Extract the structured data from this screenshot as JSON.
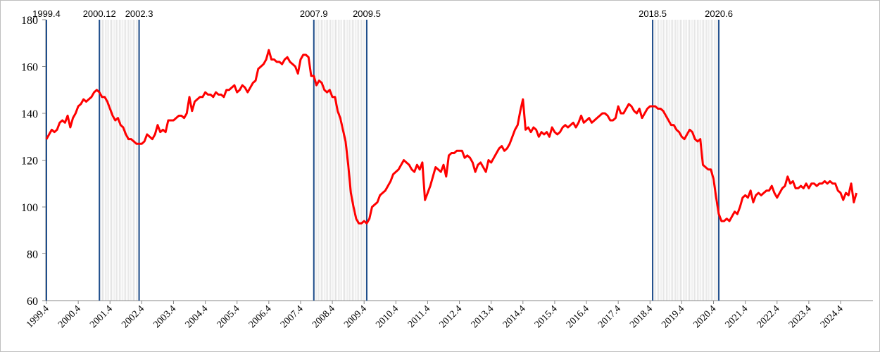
{
  "chart_data": {
    "type": "line",
    "categories": [
      "1999.4",
      null,
      null,
      null,
      null,
      null,
      null,
      null,
      null,
      null,
      null,
      null,
      "2000.4",
      null,
      null,
      null,
      null,
      null,
      null,
      null,
      null,
      null,
      null,
      null,
      "2001.4",
      null,
      null,
      null,
      null,
      null,
      null,
      null,
      null,
      null,
      null,
      null,
      "2002.4",
      null,
      null,
      null,
      null,
      null,
      null,
      null,
      null,
      null,
      null,
      null,
      "2003.4",
      null,
      null,
      null,
      null,
      null,
      null,
      null,
      null,
      null,
      null,
      null,
      "2004.4",
      null,
      null,
      null,
      null,
      null,
      null,
      null,
      null,
      null,
      null,
      null,
      "2005.4",
      null,
      null,
      null,
      null,
      null,
      null,
      null,
      null,
      null,
      null,
      null,
      "2006.4",
      null,
      null,
      null,
      null,
      null,
      null,
      null,
      null,
      null,
      null,
      null,
      "2007.4",
      null,
      null,
      null,
      null,
      null,
      null,
      null,
      null,
      null,
      null,
      null,
      "2008.4",
      null,
      null,
      null,
      null,
      null,
      null,
      null,
      null,
      null,
      null,
      null,
      "2009.4",
      null,
      null,
      null,
      null,
      null,
      null,
      null,
      null,
      null,
      null,
      null,
      "2010.4",
      null,
      null,
      null,
      null,
      null,
      null,
      null,
      null,
      null,
      null,
      null,
      "2011.4",
      null,
      null,
      null,
      null,
      null,
      null,
      null,
      null,
      null,
      null,
      null,
      "2012.4",
      null,
      null,
      null,
      null,
      null,
      null,
      null,
      null,
      null,
      null,
      null,
      "2013.4",
      null,
      null,
      null,
      null,
      null,
      null,
      null,
      null,
      null,
      null,
      null,
      "2014.4",
      null,
      null,
      null,
      null,
      null,
      null,
      null,
      null,
      null,
      null,
      null,
      "2015.4",
      null,
      null,
      null,
      null,
      null,
      null,
      null,
      null,
      null,
      null,
      null,
      "2016.4",
      null,
      null,
      null,
      null,
      null,
      null,
      null,
      null,
      null,
      null,
      null,
      "2017.4",
      null,
      null,
      null,
      null,
      null,
      null,
      null,
      null,
      null,
      null,
      null,
      "2018.4",
      null,
      null,
      null,
      null,
      null,
      null,
      null,
      null,
      null,
      null,
      null,
      "2019.4",
      null,
      null,
      null,
      null,
      null,
      null,
      null,
      null,
      null,
      null,
      null,
      "2020.4",
      null,
      null,
      null,
      null,
      null,
      null,
      null,
      null,
      null,
      null,
      null,
      "2021.4",
      null,
      null,
      null,
      null,
      null,
      null,
      null,
      null,
      null,
      null,
      null,
      "2022.4",
      null,
      null,
      null,
      null,
      null,
      null,
      null,
      null,
      null,
      null,
      null,
      "2023.4",
      null,
      null,
      null,
      null,
      null,
      null,
      null,
      null,
      null,
      null,
      null,
      "2024.4",
      null,
      null,
      null,
      null,
      null,
      null
    ],
    "values": [
      129,
      131,
      133,
      132,
      133,
      136,
      137,
      136,
      139,
      134,
      138,
      140,
      143,
      144,
      146,
      145,
      146,
      147,
      149,
      150,
      149,
      147,
      147,
      145,
      142,
      139,
      137,
      138,
      135,
      134,
      131,
      129,
      129,
      128,
      127,
      127,
      127,
      128,
      131,
      130,
      129,
      131,
      135,
      132,
      133,
      132,
      137,
      137,
      137,
      138,
      139,
      139,
      138,
      140,
      147,
      141,
      145,
      146,
      147,
      147,
      149,
      148,
      148,
      147,
      149,
      148,
      148,
      147,
      150,
      150,
      151,
      152,
      149,
      150,
      152,
      151,
      149,
      151,
      153,
      154,
      159,
      160,
      161,
      163,
      167,
      163,
      163,
      162,
      162,
      161,
      163,
      164,
      162,
      161,
      160,
      157,
      163,
      165,
      165,
      164,
      156,
      156,
      152,
      154,
      153,
      150,
      149,
      150,
      147,
      147,
      141,
      138,
      133,
      128,
      118,
      106,
      100,
      95,
      93,
      93,
      94,
      93,
      95,
      100,
      101,
      102,
      105,
      106,
      107,
      109,
      111,
      114,
      115,
      116,
      118,
      120,
      119,
      118,
      116,
      115,
      118,
      116,
      119,
      103,
      106,
      109,
      113,
      117,
      116,
      115,
      118,
      113,
      122,
      123,
      123,
      124,
      124,
      124,
      121,
      122,
      121,
      119,
      115,
      118,
      119,
      117,
      115,
      120,
      119,
      121,
      123,
      125,
      126,
      124,
      125,
      127,
      130,
      133,
      135,
      141,
      146,
      133,
      134,
      132,
      134,
      133,
      130,
      132,
      131,
      132,
      130,
      134,
      132,
      131,
      132,
      134,
      135,
      134,
      135,
      136,
      134,
      136,
      139,
      136,
      137,
      138,
      136,
      137,
      138,
      139,
      140,
      140,
      139,
      137,
      137,
      138,
      143,
      140,
      140,
      142,
      144,
      143,
      141,
      140,
      142,
      138,
      140,
      142,
      143,
      143,
      143,
      142,
      142,
      141,
      139,
      137,
      135,
      135,
      133,
      132,
      130,
      129,
      131,
      133,
      132,
      129,
      128,
      129,
      118,
      117,
      116,
      116,
      112,
      104,
      97,
      94,
      94,
      95,
      94,
      96,
      98,
      97,
      100,
      104,
      105,
      104,
      107,
      102,
      105,
      106,
      105,
      106,
      107,
      107,
      109,
      106,
      104,
      106,
      108,
      109,
      113,
      110,
      111,
      108,
      108,
      109,
      108,
      110,
      108,
      110,
      110,
      109,
      110,
      110,
      111,
      110,
      111,
      110,
      110,
      107,
      106,
      103,
      106,
      105,
      110,
      102,
      106
    ],
    "color": "#ff0000",
    "ylim": [
      60,
      180
    ],
    "yticks": [
      60,
      80,
      100,
      120,
      140,
      160,
      180
    ],
    "marker_lines": [
      "1999.4",
      "2000.12",
      "2002.3",
      "2007.9",
      "2009.5",
      "2018.5",
      "2020.6"
    ],
    "marker_color": "#1f4e8c",
    "shaded_periods": [
      [
        "2000.12",
        "2002.3"
      ],
      [
        "2007.9",
        "2009.5"
      ],
      [
        "2018.5",
        "2020.6"
      ]
    ]
  }
}
